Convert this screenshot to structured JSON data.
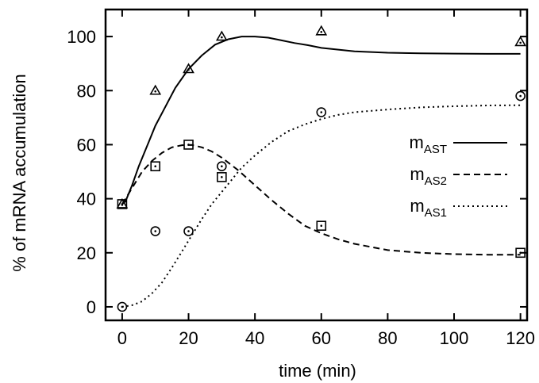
{
  "chart_data": {
    "type": "line",
    "title": "",
    "xlabel": "time (min)",
    "ylabel": "% of mRNA accumulation",
    "xlim": [
      -5,
      122
    ],
    "ylim": [
      -5,
      110
    ],
    "xticks": [
      0,
      20,
      40,
      60,
      80,
      100,
      120
    ],
    "yticks": [
      0,
      20,
      40,
      60,
      80,
      100
    ],
    "grid": false,
    "legend_position": "right",
    "series": [
      {
        "name_main": "m",
        "name_sub": "AST",
        "line_style": "solid",
        "marker": "triangle",
        "points": {
          "x": [
            0,
            10,
            20,
            30,
            60,
            120
          ],
          "y": [
            38,
            80,
            88,
            100,
            102,
            98
          ]
        },
        "curve": {
          "x": [
            0,
            1,
            3,
            5,
            8,
            10,
            13,
            16,
            20,
            24,
            28,
            32,
            36,
            40,
            44,
            48,
            52,
            56,
            60,
            70,
            80,
            90,
            100,
            110,
            120
          ],
          "y": [
            38,
            39,
            45,
            52,
            61,
            67,
            74,
            81,
            88,
            93,
            97,
            99,
            100,
            100,
            99.6,
            98.6,
            97.6,
            96.8,
            95.8,
            94.5,
            94,
            93.8,
            93.7,
            93.6,
            93.6
          ]
        }
      },
      {
        "name_main": "m",
        "name_sub": "AS2",
        "line_style": "dashed",
        "marker": "square",
        "points": {
          "x": [
            0,
            10,
            20,
            30,
            60,
            120
          ],
          "y": [
            38,
            52,
            60,
            48,
            30,
            20
          ]
        },
        "curve": {
          "x": [
            0,
            2,
            4,
            6,
            9,
            12,
            15,
            18,
            21,
            24,
            27,
            30,
            35,
            40,
            45,
            50,
            55,
            60,
            65,
            70,
            80,
            90,
            100,
            110,
            120
          ],
          "y": [
            38,
            42,
            46,
            50,
            54,
            57,
            59,
            59.8,
            59.9,
            59,
            57.5,
            55.2,
            50.5,
            45,
            39.5,
            34.5,
            30,
            27.2,
            25,
            23.3,
            21,
            20,
            19.5,
            19.3,
            19.3
          ]
        }
      },
      {
        "name_main": "m",
        "name_sub": "AS1",
        "line_style": "dotted",
        "marker": "circle",
        "points": {
          "x": [
            0,
            10,
            20,
            30,
            60,
            120
          ],
          "y": [
            0,
            28,
            28,
            52,
            72,
            78
          ]
        },
        "curve": {
          "x": [
            0,
            3,
            6,
            9,
            12,
            15,
            18,
            21,
            24,
            27,
            30,
            33,
            36,
            40,
            45,
            50,
            55,
            60,
            65,
            70,
            80,
            90,
            100,
            110,
            120
          ],
          "y": [
            0,
            0.6,
            2,
            5,
            9,
            14.5,
            20.5,
            26.5,
            32.5,
            38,
            42.5,
            47,
            51.5,
            56,
            61,
            65,
            67.5,
            69.5,
            71,
            72,
            73,
            73.8,
            74.2,
            74.5,
            74.6
          ]
        }
      }
    ]
  }
}
